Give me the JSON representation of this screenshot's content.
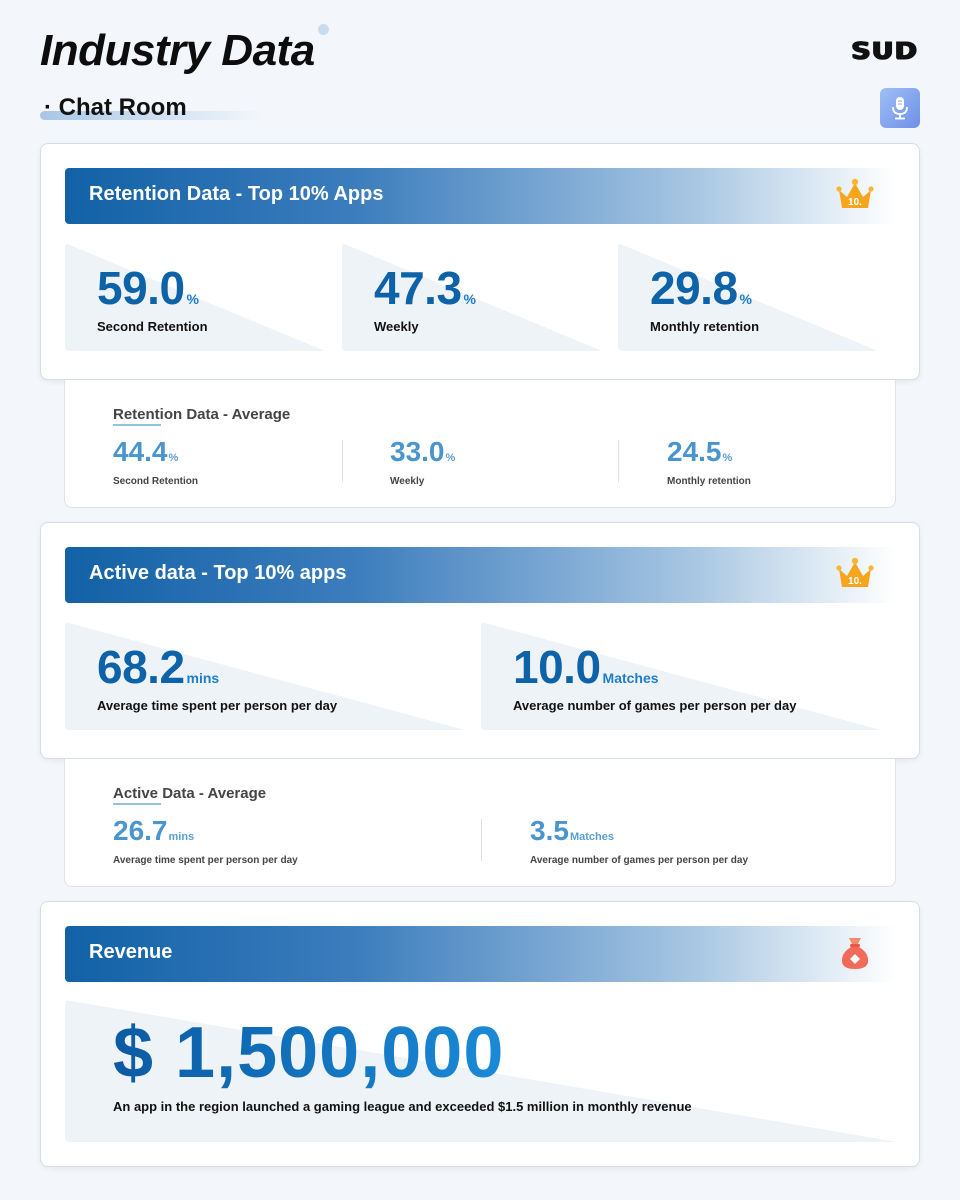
{
  "header": {
    "title": "Industry Data",
    "logo_text": "SUD",
    "section_label": "Chat Room",
    "section_bullet": "·",
    "mic_icon": "microphone-icon"
  },
  "colors": {
    "primary_blue": "#0d62a8",
    "header_gradient_start": "#1261a6",
    "average_blue": "#4a95cd",
    "crown_gold": "#f7a51c",
    "bag_red": "#f26a5a"
  },
  "retention_top": {
    "title": "Retention Data - Top 10% Apps",
    "badge_text": "10.",
    "badge_icon": "crown-icon",
    "metrics": [
      {
        "value": "59.0",
        "unit": "%",
        "label": "Second Retention"
      },
      {
        "value": "47.3",
        "unit": "%",
        "label": "Weekly"
      },
      {
        "value": "29.8",
        "unit": "%",
        "label": "Monthly retention"
      }
    ]
  },
  "retention_avg": {
    "title": "Retention Data - Average",
    "metrics": [
      {
        "value": "44.4",
        "unit": "%",
        "label": "Second Retention"
      },
      {
        "value": "33.0",
        "unit": "%",
        "label": "Weekly"
      },
      {
        "value": "24.5",
        "unit": "%",
        "label": "Monthly retention"
      }
    ]
  },
  "active_top": {
    "title": "Active data - Top 10% apps",
    "badge_text": "10.",
    "badge_icon": "crown-icon",
    "metrics": [
      {
        "value": "68.2",
        "unit": "mins",
        "label": "Average time spent per person per day"
      },
      {
        "value": "10.0",
        "unit": "Matches",
        "label": "Average number of games per person per day"
      }
    ]
  },
  "active_avg": {
    "title": "Active Data - Average",
    "metrics": [
      {
        "value": "26.7",
        "unit": "mins",
        "label": "Average time spent per person per day"
      },
      {
        "value": "3.5",
        "unit": "Matches",
        "label": "Average number of games per person per day"
      }
    ]
  },
  "revenue": {
    "title": "Revenue",
    "icon": "money-bag-icon",
    "value": "$ 1,500,000",
    "note": "An app in the region launched a gaming league and exceeded $1.5 million in monthly revenue"
  }
}
